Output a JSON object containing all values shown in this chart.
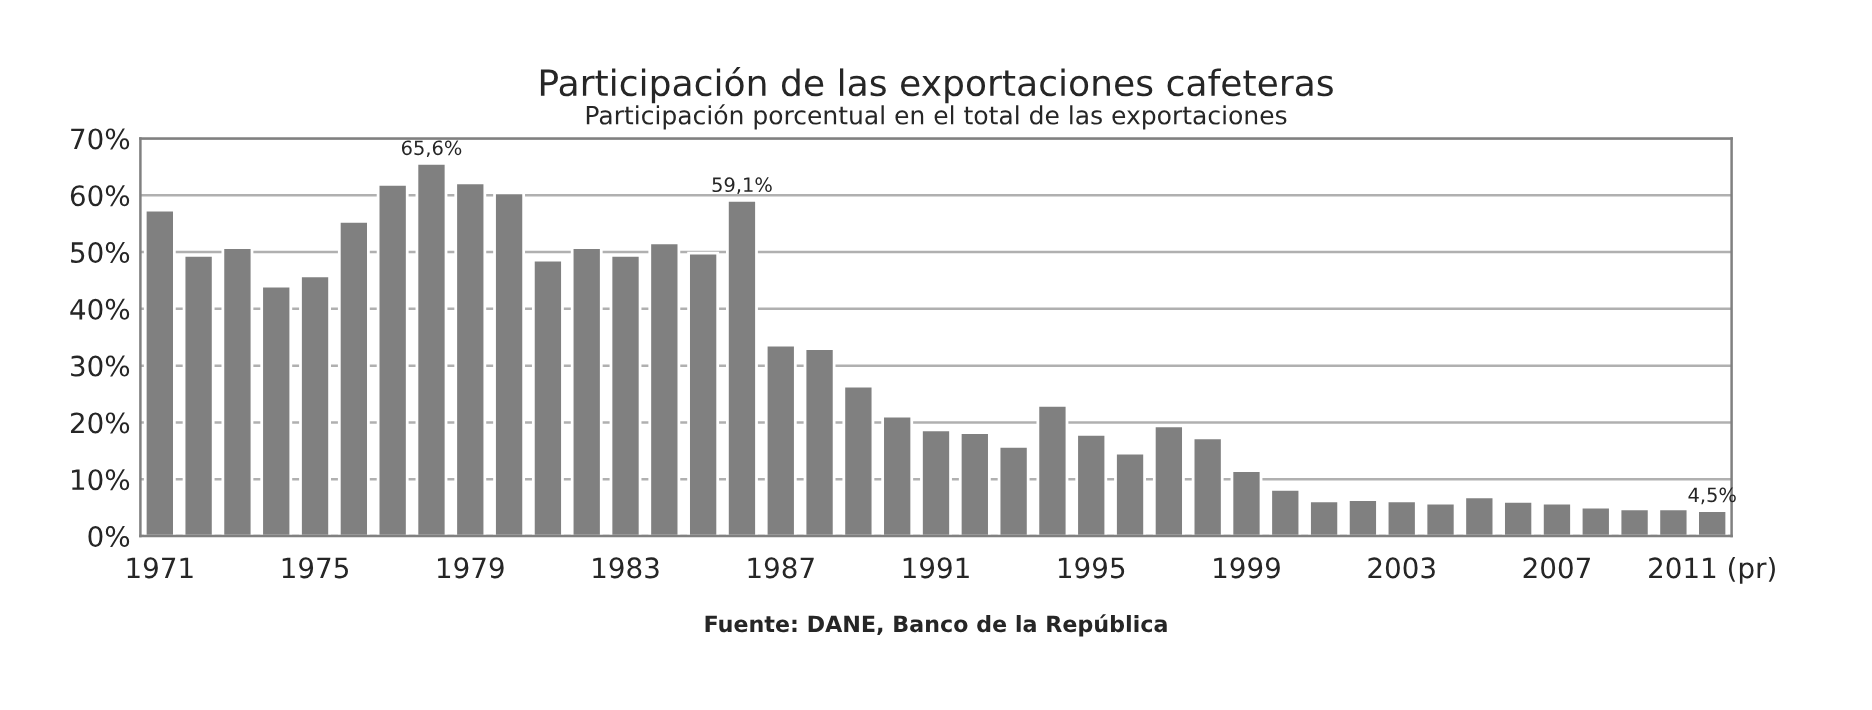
{
  "chart_data": {
    "type": "bar",
    "title": "Participación de las exportaciones cafeteras",
    "subtitle": "Participación porcentual en el total de las exportaciones",
    "categories": [
      "1971",
      null,
      null,
      null,
      "1975",
      null,
      null,
      null,
      "1979",
      null,
      null,
      null,
      "1983",
      null,
      null,
      null,
      "1987",
      null,
      null,
      null,
      "1991",
      null,
      null,
      null,
      "1995",
      null,
      null,
      null,
      "1999",
      null,
      null,
      null,
      "2003",
      null,
      null,
      null,
      "2007",
      null,
      null,
      null,
      "2011 (pr)"
    ],
    "values": [
      57.4,
      49.4,
      50.8,
      44.0,
      45.8,
      55.4,
      61.9,
      65.6,
      62.2,
      60.4,
      48.6,
      50.8,
      49.4,
      51.6,
      49.8,
      59.1,
      33.6,
      33.0,
      26.4,
      21.1,
      18.7,
      18.2,
      15.8,
      23.0,
      17.9,
      14.6,
      19.4,
      17.3,
      11.5,
      8.2,
      6.2,
      6.4,
      6.2,
      5.8,
      6.9,
      6.1,
      5.8,
      5.1,
      4.8,
      4.8,
      4.5
    ],
    "value_labels": [
      null,
      null,
      null,
      null,
      null,
      null,
      null,
      "65,6%",
      null,
      null,
      null,
      null,
      null,
      null,
      null,
      "59,1%",
      null,
      null,
      null,
      null,
      null,
      null,
      null,
      null,
      null,
      null,
      null,
      null,
      null,
      null,
      null,
      null,
      null,
      null,
      null,
      null,
      null,
      null,
      null,
      null,
      "4,5%"
    ],
    "color": "#808080",
    "ylim": [
      0,
      70
    ],
    "yticks": [
      {
        "value": 0,
        "label": "0%"
      },
      {
        "value": 10,
        "label": "10%"
      },
      {
        "value": 20,
        "label": "20%"
      },
      {
        "value": 30,
        "label": "30%"
      },
      {
        "value": 40,
        "label": "40%"
      },
      {
        "value": 50,
        "label": "50%"
      },
      {
        "value": 60,
        "label": "60%"
      },
      {
        "value": 70,
        "label": "70%"
      }
    ],
    "grid": "y",
    "annotations": [
      "Fuente: DANE, Banco de la República"
    ]
  }
}
